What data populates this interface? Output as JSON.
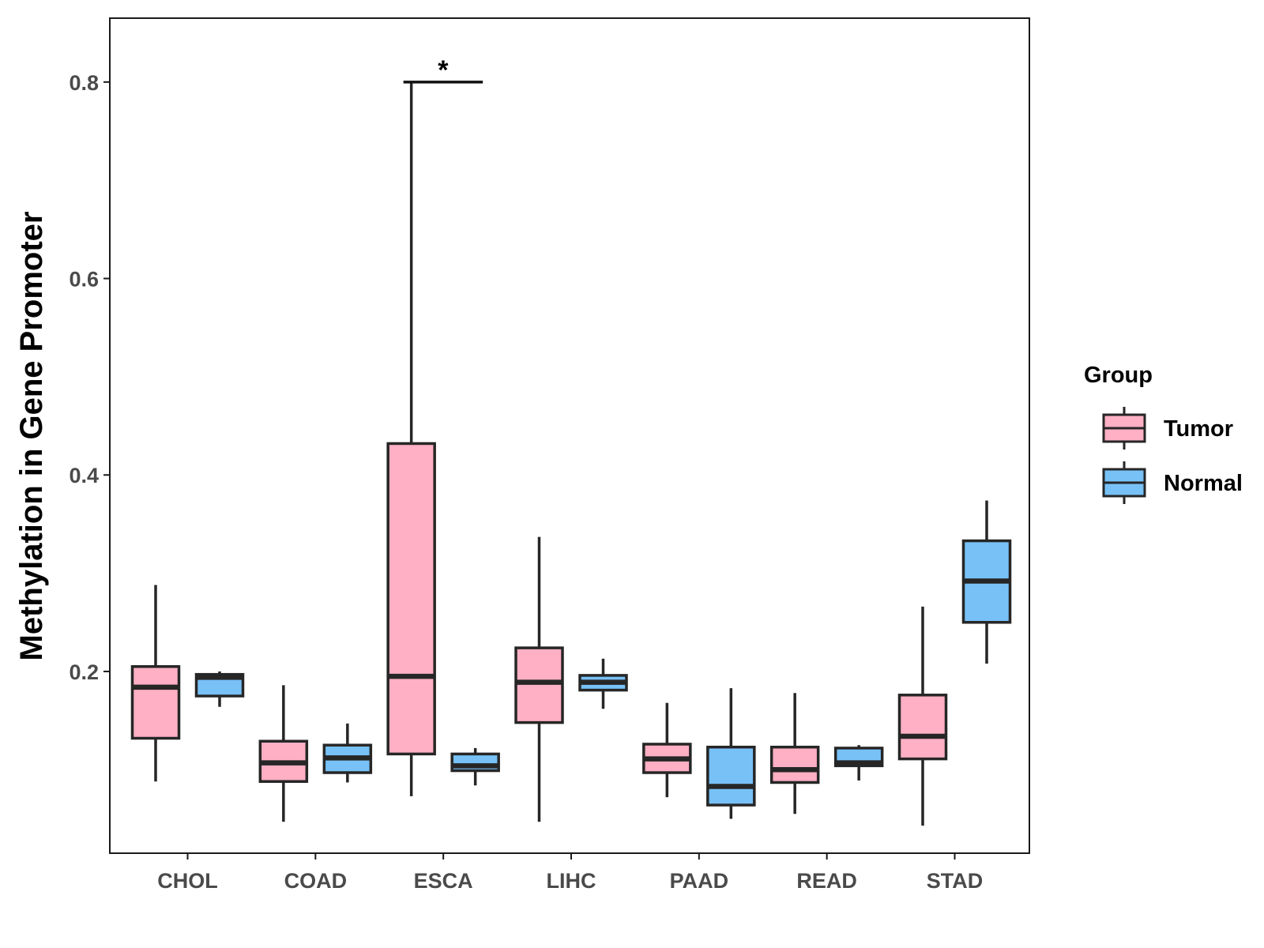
{
  "chart_data": {
    "type": "boxplot",
    "title": "",
    "xlabel": "",
    "ylabel": "Methylation in Gene Promoter",
    "ylim": [
      0.015,
      0.865
    ],
    "yticks": [
      0.2,
      0.4,
      0.6,
      0.8
    ],
    "ytick_labels": [
      "0.2",
      "0.4",
      "0.6",
      "0.8"
    ],
    "categories": [
      "CHOL",
      "COAD",
      "ESCA",
      "LIHC",
      "PAAD",
      "READ",
      "STAD"
    ],
    "legend": {
      "title": "Group",
      "position": "right",
      "entries": [
        {
          "name": "Tumor",
          "color": "#FFB0C4"
        },
        {
          "name": "Normal",
          "color": "#77C1F7"
        }
      ]
    },
    "series": [
      {
        "name": "Tumor",
        "color": "#FFB0C4",
        "boxes": [
          {
            "min": 0.088,
            "q1": 0.132,
            "median": 0.184,
            "q3": 0.205,
            "max": 0.288
          },
          {
            "min": 0.047,
            "q1": 0.088,
            "median": 0.107,
            "q3": 0.129,
            "max": 0.186
          },
          {
            "min": 0.073,
            "q1": 0.116,
            "median": 0.195,
            "q3": 0.432,
            "max": 0.8
          },
          {
            "min": 0.047,
            "q1": 0.148,
            "median": 0.189,
            "q3": 0.224,
            "max": 0.337
          },
          {
            "min": 0.072,
            "q1": 0.097,
            "median": 0.111,
            "q3": 0.126,
            "max": 0.168
          },
          {
            "min": 0.055,
            "q1": 0.087,
            "median": 0.1,
            "q3": 0.123,
            "max": 0.178
          },
          {
            "min": 0.043,
            "q1": 0.111,
            "median": 0.134,
            "q3": 0.176,
            "max": 0.266
          }
        ]
      },
      {
        "name": "Normal",
        "color": "#77C1F7",
        "boxes": [
          {
            "min": 0.164,
            "q1": 0.175,
            "median": 0.194,
            "q3": 0.197,
            "max": 0.2
          },
          {
            "min": 0.087,
            "q1": 0.097,
            "median": 0.112,
            "q3": 0.125,
            "max": 0.147
          },
          {
            "min": 0.084,
            "q1": 0.099,
            "median": 0.104,
            "q3": 0.116,
            "max": 0.122
          },
          {
            "min": 0.162,
            "q1": 0.181,
            "median": 0.189,
            "q3": 0.196,
            "max": 0.213
          },
          {
            "min": 0.05,
            "q1": 0.064,
            "median": 0.083,
            "q3": 0.123,
            "max": 0.183
          },
          {
            "min": 0.089,
            "q1": 0.104,
            "median": 0.107,
            "q3": 0.122,
            "max": 0.125
          },
          {
            "min": 0.208,
            "q1": 0.25,
            "median": 0.292,
            "q3": 0.333,
            "max": 0.374
          }
        ]
      }
    ],
    "annotations": [
      {
        "type": "significance",
        "category": "ESCA",
        "text": "*",
        "y": 0.8
      }
    ],
    "grid": false
  }
}
